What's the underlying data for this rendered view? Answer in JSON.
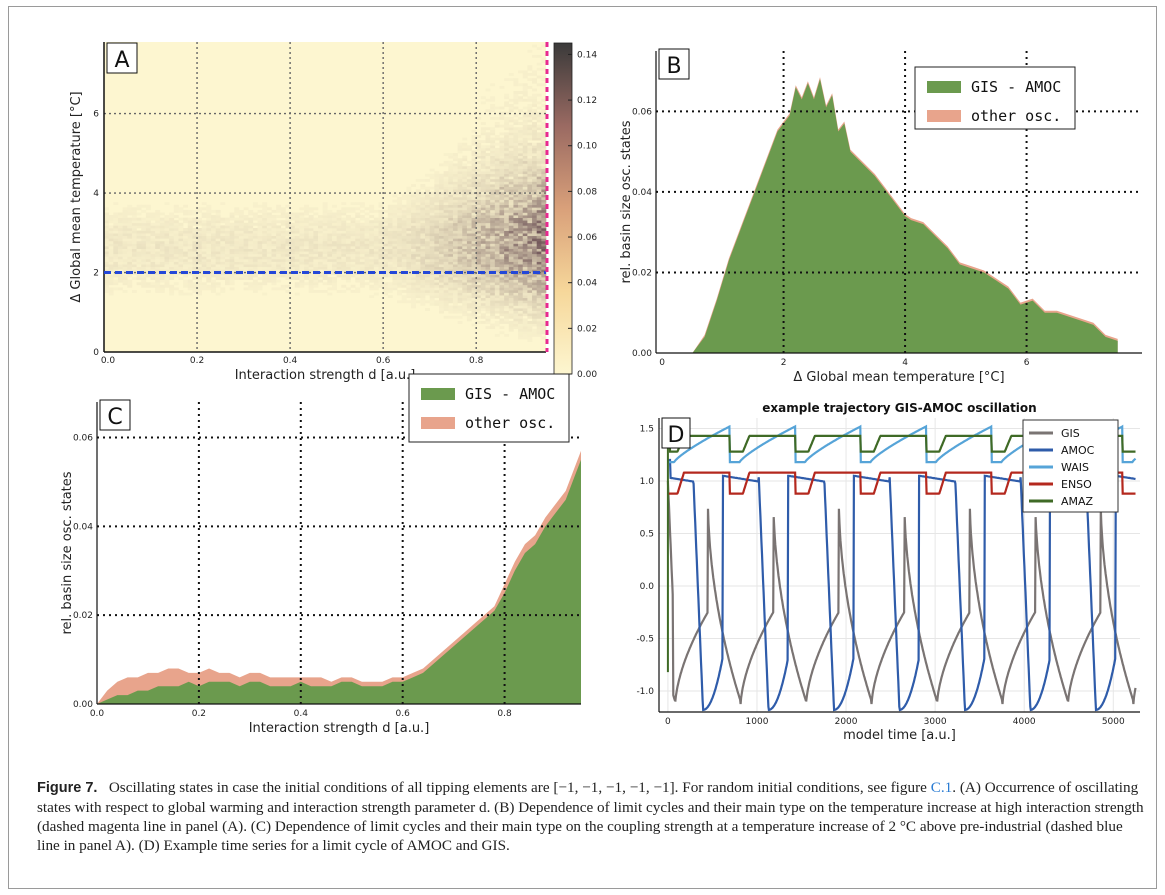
{
  "caption": {
    "label": "Figure 7.",
    "text_a": "Oscillating states in case the initial conditions of all tipping elements are [−1, −1, −1, −1, −1]. For random initial conditions, see figure ",
    "link": "C.1",
    "text_b": ". (A) Occurrence of oscillating states with respect to global warming and interaction strength parameter d. (B) Dependence of limit cycles and their main type on the temperature increase at high interaction strength (dashed magenta line in panel (A). (C) Dependence of limit cycles and their main type on the coupling strength at a temperature increase of 2 °C above pre-industrial (dashed blue line in panel A). (D) Example time series for a limit cycle of AMOC and GIS."
  },
  "colors": {
    "gis_amoc": "#6b9a4e",
    "other": "#e8a48c",
    "magenta": "#e8298f",
    "blue": "#2447d8",
    "heat_low": "#fdf6d0",
    "heat_high": "#3a3a3a"
  },
  "chart_data": [
    {
      "panel": "A",
      "type": "heatmap",
      "xlabel": "Interaction strength d [a.u.]",
      "ylabel": "Δ Global mean temperature [°C]",
      "xlim": [
        0,
        0.95
      ],
      "ylim": [
        0,
        7.8
      ],
      "xticks": [
        "0.0",
        "0.2",
        "0.4",
        "0.6",
        "0.8"
      ],
      "yticks": [
        "0",
        "2",
        "4",
        "6"
      ],
      "colorbar_ticks": [
        "0.00",
        "0.02",
        "0.04",
        "0.06",
        "0.08",
        "0.10",
        "0.12",
        "0.14"
      ],
      "colorbar_range": [
        0,
        0.145
      ],
      "grid": true,
      "hlines": [
        {
          "y": 2,
          "color": "blue",
          "style": "dashed"
        }
      ],
      "vlines": [
        {
          "x": 0.95,
          "color": "magenta",
          "style": "dashed"
        }
      ],
      "description_values": {
        "hotspot_d_range": [
          0.75,
          0.95
        ],
        "hotspot_temp_range": [
          1.5,
          4.5
        ]
      }
    },
    {
      "panel": "B",
      "type": "area",
      "xlabel": "Δ Global mean temperature [°C]",
      "ylabel": "rel. basin size osc. states",
      "xlim": [
        -0.1,
        7.9
      ],
      "ylim": [
        0,
        0.075
      ],
      "xticks": [
        "0",
        "2",
        "4",
        "6"
      ],
      "yticks": [
        "0.00",
        "0.02",
        "0.04",
        "0.06"
      ],
      "legend": [
        "GIS - AMOC",
        "other osc."
      ],
      "legend_position": "top-right",
      "grid": true,
      "x": [
        0.5,
        0.7,
        0.9,
        1.1,
        1.3,
        1.5,
        1.7,
        1.9,
        2.1,
        2.2,
        2.3,
        2.4,
        2.5,
        2.6,
        2.7,
        2.8,
        2.9,
        3.0,
        3.1,
        3.3,
        3.5,
        3.7,
        3.9,
        4.0,
        4.1,
        4.3,
        4.5,
        4.7,
        4.9,
        5.1,
        5.3,
        5.5,
        5.7,
        5.9,
        6.1,
        6.3,
        6.5,
        6.7,
        6.9,
        7.1,
        7.3,
        7.5
      ],
      "series": [
        {
          "name": "GIS - AMOC",
          "values": [
            0,
            0.004,
            0.013,
            0.023,
            0.031,
            0.039,
            0.047,
            0.055,
            0.059,
            0.066,
            0.063,
            0.067,
            0.063,
            0.068,
            0.061,
            0.064,
            0.055,
            0.057,
            0.05,
            0.047,
            0.044,
            0.04,
            0.036,
            0.034,
            0.033,
            0.032,
            0.029,
            0.026,
            0.022,
            0.021,
            0.02,
            0.018,
            0.016,
            0.012,
            0.013,
            0.01,
            0.01,
            0.009,
            0.008,
            0.007,
            0.004,
            0.003
          ]
        },
        {
          "name": "other osc.",
          "values": [
            0,
            0.0045,
            0.0135,
            0.0235,
            0.0315,
            0.0395,
            0.0475,
            0.0555,
            0.0595,
            0.0665,
            0.0635,
            0.0675,
            0.0635,
            0.0685,
            0.0615,
            0.0645,
            0.0555,
            0.0575,
            0.0505,
            0.0475,
            0.0445,
            0.0405,
            0.0365,
            0.0345,
            0.0335,
            0.0325,
            0.0295,
            0.0265,
            0.0225,
            0.0215,
            0.0205,
            0.0185,
            0.0165,
            0.0125,
            0.0135,
            0.0105,
            0.0105,
            0.0095,
            0.0085,
            0.0075,
            0.0045,
            0.0035
          ]
        }
      ]
    },
    {
      "panel": "C",
      "type": "area",
      "xlabel": "Interaction strength d [a.u.]",
      "ylabel": "rel. basin size osc. states",
      "xlim": [
        0,
        0.95
      ],
      "ylim": [
        0,
        0.068
      ],
      "xticks": [
        "0.0",
        "0.2",
        "0.4",
        "0.6",
        "0.8"
      ],
      "yticks": [
        "0.00",
        "0.02",
        "0.04",
        "0.06"
      ],
      "legend": [
        "GIS - AMOC",
        "other osc."
      ],
      "legend_position": "top-right",
      "grid": true,
      "x": [
        0.0,
        0.02,
        0.04,
        0.06,
        0.08,
        0.1,
        0.12,
        0.14,
        0.16,
        0.18,
        0.2,
        0.22,
        0.24,
        0.26,
        0.28,
        0.3,
        0.32,
        0.34,
        0.36,
        0.38,
        0.4,
        0.42,
        0.44,
        0.46,
        0.48,
        0.5,
        0.52,
        0.54,
        0.56,
        0.58,
        0.6,
        0.62,
        0.64,
        0.66,
        0.68,
        0.7,
        0.72,
        0.74,
        0.76,
        0.78,
        0.8,
        0.82,
        0.84,
        0.86,
        0.88,
        0.9,
        0.92,
        0.94,
        0.95
      ],
      "series": [
        {
          "name": "GIS - AMOC",
          "values": [
            0.0,
            0.001,
            0.002,
            0.002,
            0.003,
            0.003,
            0.004,
            0.004,
            0.004,
            0.005,
            0.004,
            0.005,
            0.005,
            0.005,
            0.004,
            0.005,
            0.005,
            0.004,
            0.004,
            0.004,
            0.005,
            0.004,
            0.004,
            0.004,
            0.005,
            0.005,
            0.004,
            0.004,
            0.004,
            0.005,
            0.005,
            0.006,
            0.007,
            0.009,
            0.011,
            0.013,
            0.015,
            0.017,
            0.019,
            0.021,
            0.025,
            0.03,
            0.034,
            0.036,
            0.04,
            0.043,
            0.046,
            0.052,
            0.055
          ]
        },
        {
          "name": "other osc.",
          "values": [
            0.0,
            0.003,
            0.005,
            0.006,
            0.006,
            0.007,
            0.007,
            0.008,
            0.008,
            0.007,
            0.007,
            0.008,
            0.007,
            0.007,
            0.006,
            0.007,
            0.007,
            0.006,
            0.006,
            0.006,
            0.006,
            0.006,
            0.006,
            0.005,
            0.006,
            0.006,
            0.005,
            0.005,
            0.005,
            0.006,
            0.006,
            0.007,
            0.008,
            0.01,
            0.012,
            0.014,
            0.016,
            0.018,
            0.02,
            0.022,
            0.027,
            0.032,
            0.036,
            0.038,
            0.042,
            0.045,
            0.048,
            0.054,
            0.057
          ]
        }
      ]
    },
    {
      "panel": "D",
      "type": "line",
      "title": "example trajectory GIS-AMOC oscillation",
      "xlabel": "model time [a.u.]",
      "xlim": [
        -100,
        5300
      ],
      "ylim": [
        -1.2,
        1.6
      ],
      "xticks": [
        "0",
        "1000",
        "2000",
        "3000",
        "4000",
        "5000"
      ],
      "yticks": [
        "-1.0",
        "-0.5",
        "0.0",
        "0.5",
        "1.0",
        "1.5"
      ],
      "legend_position": "top-right",
      "period": 735,
      "series": [
        {
          "name": "GIS",
          "color": "#7a7473",
          "max": 1.0,
          "min": -1.15
        },
        {
          "name": "AMOC",
          "color": "#2f5caa",
          "max": 1.2,
          "min": -1.18
        },
        {
          "name": "WAIS",
          "color": "#56a4d8",
          "max": 1.52,
          "min": 1.18
        },
        {
          "name": "ENSO",
          "color": "#b4281e",
          "max": 1.1,
          "min": 0.88
        },
        {
          "name": "AMAZ",
          "color": "#3f6a26",
          "max": 1.45,
          "min": 1.28
        }
      ]
    }
  ]
}
